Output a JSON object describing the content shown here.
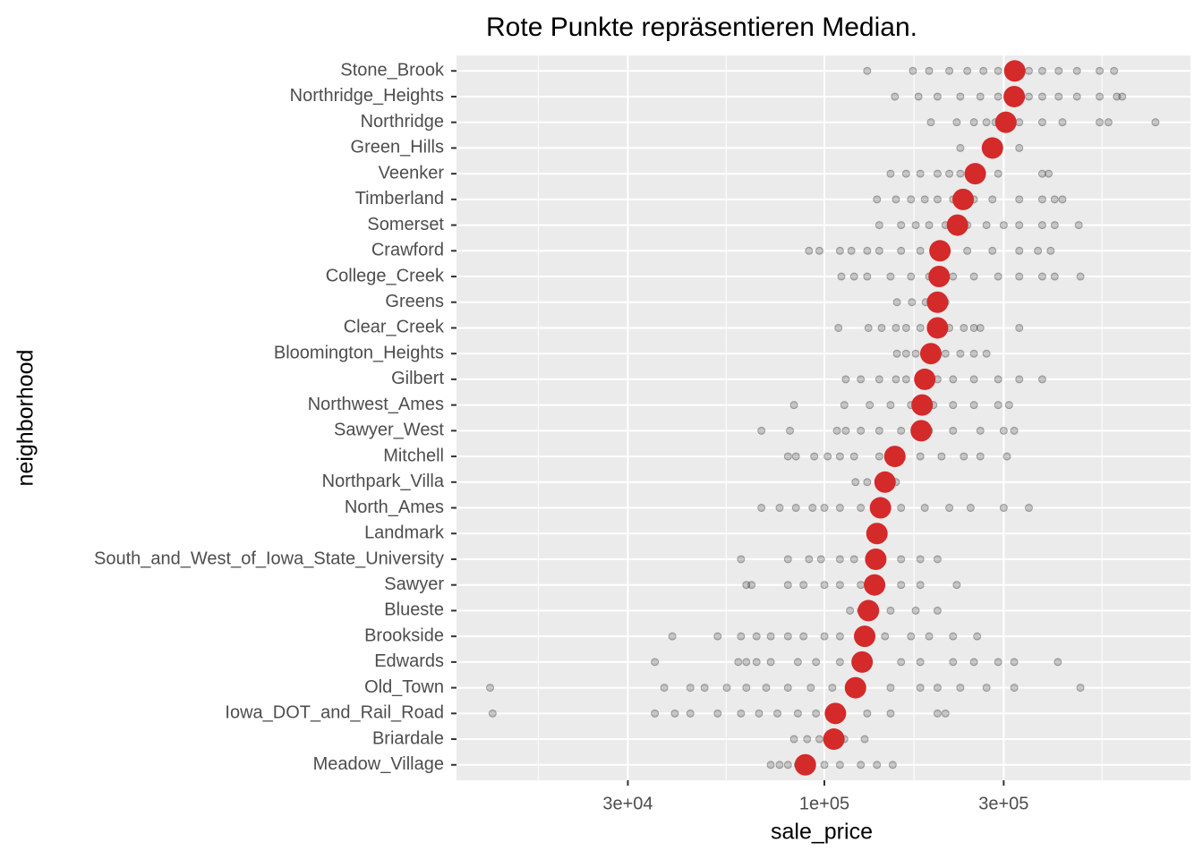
{
  "chart_data": {
    "type": "strip",
    "title": "Rote Punkte repräsentieren Median.",
    "x_label": "sale_price",
    "y_label": "neighborhood",
    "log_x": true,
    "grid": true,
    "point_color": "#000000",
    "median_color": "#d42a2a",
    "xlim": [
      10500,
      942000
    ],
    "xticks": [
      {
        "value": 30000,
        "label": "3e+04"
      },
      {
        "value": 100000,
        "label": "1e+05"
      },
      {
        "value": 300000,
        "label": "3e+05"
      }
    ],
    "xminor": [
      17321,
      54772,
      173205,
      547723
    ],
    "categories": [
      "Stone_Brook",
      "Northridge_Heights",
      "Northridge",
      "Green_Hills",
      "Veenker",
      "Timberland",
      "Somerset",
      "Crawford",
      "College_Creek",
      "Greens",
      "Clear_Creek",
      "Bloomington_Heights",
      "Gilbert",
      "Northwest_Ames",
      "Sawyer_West",
      "Mitchell",
      "Northpark_Villa",
      "North_Ames",
      "Landmark",
      "South_and_West_of_Iowa_State_University",
      "Sawyer",
      "Blueste",
      "Brookside",
      "Edwards",
      "Old_Town",
      "Iowa_DOT_and_Rail_Road",
      "Briardale",
      "Meadow_Village"
    ],
    "medians": [
      321000,
      320000,
      304000,
      280000,
      252000,
      234000,
      226000,
      203000,
      202000,
      200000,
      200000,
      192000,
      185000,
      182000,
      181000,
      154000,
      145000,
      141000,
      138000,
      137000,
      136000,
      131000,
      128000,
      126000,
      121000,
      107000,
      106000,
      89000
    ],
    "points": [
      [
        130000,
        172000,
        190000,
        215000,
        240000,
        265000,
        290000,
        350000,
        380000,
        420000,
        470000,
        540000,
        590000
      ],
      [
        154000,
        178000,
        200000,
        230000,
        260000,
        290000,
        350000,
        380000,
        420000,
        470000,
        540000,
        600000,
        620000
      ],
      [
        192000,
        225000,
        250000,
        270000,
        285000,
        330000,
        380000,
        430000,
        540000,
        570000,
        760000
      ],
      [
        230000,
        330000
      ],
      [
        150000,
        165000,
        180000,
        200000,
        215000,
        230000,
        260000,
        290000,
        380000,
        395000
      ],
      [
        138000,
        155000,
        170000,
        185000,
        200000,
        220000,
        250000,
        280000,
        330000,
        380000,
        410000,
        430000
      ],
      [
        140000,
        160000,
        175000,
        190000,
        210000,
        240000,
        270000,
        300000,
        330000,
        380000,
        410000,
        475000
      ],
      [
        91000,
        97000,
        110000,
        118000,
        130000,
        140000,
        160000,
        180000,
        200000,
        240000,
        280000,
        330000,
        370000,
        400000
      ],
      [
        111000,
        120000,
        130000,
        150000,
        170000,
        190000,
        220000,
        250000,
        290000,
        330000,
        380000,
        410000,
        480000
      ],
      [
        156000,
        171000,
        186000,
        210000
      ],
      [
        109000,
        131000,
        142000,
        155000,
        165000,
        180000,
        215000,
        235000,
        250000,
        260000,
        330000
      ],
      [
        156000,
        165000,
        175000,
        190000,
        210000,
        230000,
        250000,
        270000
      ],
      [
        114000,
        125000,
        140000,
        155000,
        165000,
        180000,
        200000,
        220000,
        250000,
        290000,
        330000,
        380000
      ],
      [
        83000,
        113000,
        132000,
        150000,
        170000,
        195000,
        220000,
        250000,
        290000,
        310000
      ],
      [
        68000,
        81000,
        108000,
        114000,
        125000,
        140000,
        160000,
        190000,
        220000,
        260000,
        300000,
        320000
      ],
      [
        80000,
        84000,
        94000,
        102000,
        110000,
        120000,
        140000,
        160000,
        180000,
        205000,
        235000,
        260000,
        306000
      ],
      [
        121000,
        130000,
        140000,
        150000,
        155000
      ],
      [
        68000,
        76000,
        84000,
        93000,
        100000,
        110000,
        125000,
        140000,
        160000,
        185000,
        215000,
        245000,
        300000,
        350000
      ],
      [],
      [
        60000,
        80000,
        91000,
        98000,
        110000,
        120000,
        135000,
        160000,
        180000,
        200000
      ],
      [
        62000,
        64000,
        80000,
        88000,
        100000,
        110000,
        125000,
        140000,
        160000,
        180000,
        225000
      ],
      [
        117000,
        125000,
        150000,
        175000,
        200000
      ],
      [
        39400,
        52000,
        60000,
        66000,
        72000,
        80000,
        88000,
        100000,
        110000,
        125000,
        145000,
        170000,
        190000,
        220000,
        255000
      ],
      [
        35400,
        59000,
        62000,
        66000,
        72000,
        85000,
        95000,
        110000,
        130000,
        160000,
        180000,
        220000,
        250000,
        290000,
        320000,
        418000
      ],
      [
        12900,
        37500,
        44000,
        48000,
        55000,
        62000,
        70000,
        80000,
        92000,
        105000,
        120000,
        150000,
        180000,
        200000,
        230000,
        270000,
        320000,
        480000
      ],
      [
        13100,
        35400,
        40000,
        44000,
        52000,
        60000,
        67000,
        75000,
        85000,
        95000,
        110000,
        130000,
        150000,
        200000,
        210000
      ],
      [
        83000,
        90000,
        97000,
        105000,
        113000,
        128000
      ],
      [
        72000,
        76000,
        80000,
        85000,
        90000,
        100000,
        110000,
        125000,
        138000,
        152000
      ]
    ]
  }
}
